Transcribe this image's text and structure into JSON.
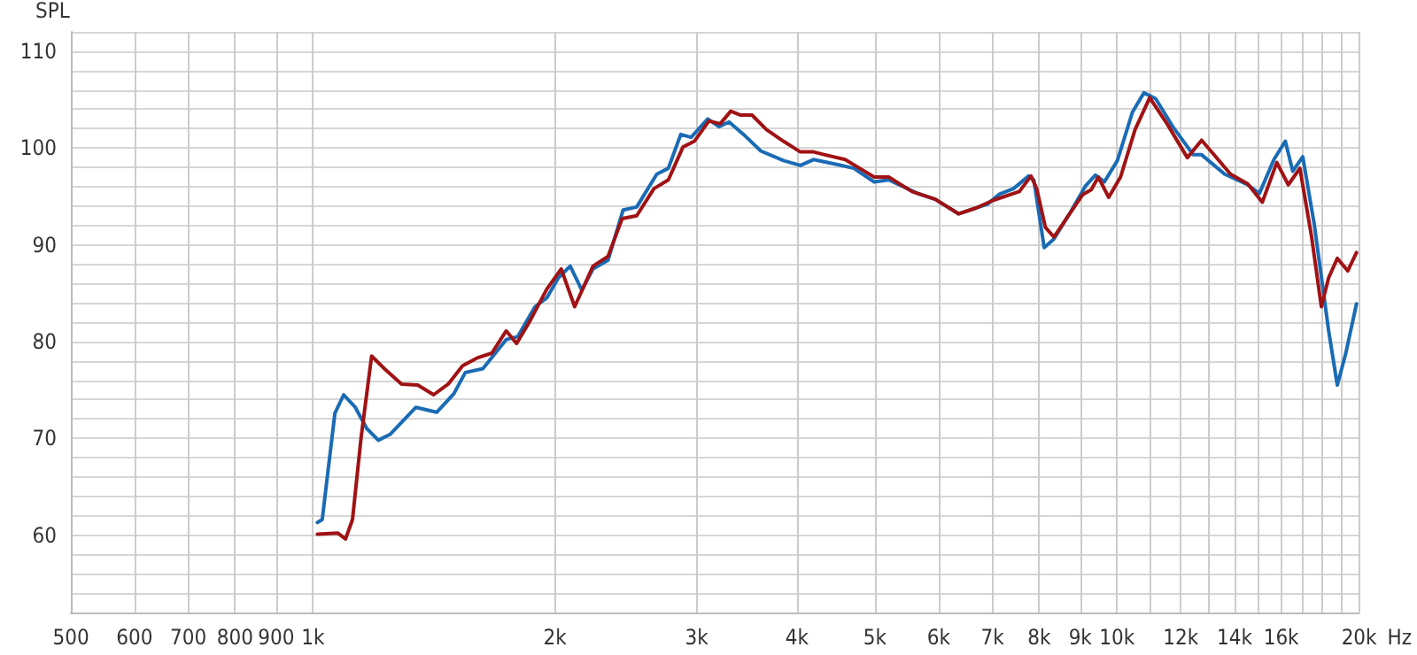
{
  "chart_data": {
    "type": "line",
    "xlabel": "Hz",
    "ylabel": "SPL",
    "log": "x",
    "grid": true,
    "marker": "none",
    "line_style": "solid",
    "xlim": [
      500,
      20000
    ],
    "ylim": [
      52,
      112
    ],
    "xticks": [
      500,
      600,
      700,
      800,
      900,
      {
        "value": 1000,
        "label": "1k"
      },
      {
        "value": 2000,
        "label": "2k"
      },
      {
        "value": 3000,
        "label": "3k"
      },
      {
        "value": 4000,
        "label": "4k"
      },
      {
        "value": 5000,
        "label": "5k"
      },
      {
        "value": 6000,
        "label": "6k"
      },
      {
        "value": 7000,
        "label": "7k"
      },
      {
        "value": 8000,
        "label": "8k"
      },
      {
        "value": 9000,
        "label": "9k"
      },
      {
        "value": 10000,
        "label": "10k"
      },
      {
        "value": 11000,
        "label": null
      },
      {
        "value": 12000,
        "label": "12k"
      },
      {
        "value": 13000,
        "label": null
      },
      {
        "value": 14000,
        "label": "14k"
      },
      {
        "value": 15000,
        "label": null
      },
      {
        "value": 16000,
        "label": "16k"
      },
      {
        "value": 17000,
        "label": null
      },
      {
        "value": 18000,
        "label": null
      },
      {
        "value": 19000,
        "label": null
      },
      {
        "value": 20000,
        "label": "20k"
      }
    ],
    "yticks": [
      {
        "value": 52,
        "label": null
      },
      {
        "value": 54,
        "label": null
      },
      {
        "value": 56,
        "label": null
      },
      {
        "value": 58,
        "label": null
      },
      60,
      {
        "value": 62,
        "label": null
      },
      {
        "value": 64,
        "label": null
      },
      {
        "value": 66,
        "label": null
      },
      {
        "value": 68,
        "label": null
      },
      70,
      {
        "value": 72,
        "label": null
      },
      {
        "value": 74,
        "label": null
      },
      {
        "value": 76,
        "label": null
      },
      {
        "value": 78,
        "label": null
      },
      80,
      {
        "value": 82,
        "label": null
      },
      {
        "value": 84,
        "label": null
      },
      {
        "value": 86,
        "label": null
      },
      {
        "value": 88,
        "label": null
      },
      90,
      {
        "value": 92,
        "label": null
      },
      {
        "value": 94,
        "label": null
      },
      {
        "value": 96,
        "label": null
      },
      {
        "value": 98,
        "label": null
      },
      100,
      {
        "value": 102,
        "label": null
      },
      {
        "value": 104,
        "label": null
      },
      {
        "value": 106,
        "label": null
      },
      {
        "value": 108,
        "label": null
      },
      110,
      {
        "value": 112,
        "label": null
      }
    ],
    "series": [
      {
        "color": "#1a6bb5",
        "x": [
          1013,
          1027,
          1065,
          1092,
          1129,
          1167,
          1206,
          1247,
          1343,
          1426,
          1497,
          1547,
          1627,
          1739,
          1797,
          1889,
          1953,
          2020,
          2089,
          2160,
          2230,
          2328,
          2431,
          2527,
          2677,
          2767,
          2867,
          2954,
          3097,
          3199,
          3292,
          3432,
          3605,
          3847,
          4038,
          4193,
          4482,
          4707,
          4988,
          5201,
          5652,
          5942,
          6351,
          6902,
          7130,
          7435,
          7762,
          7880,
          8117,
          8347,
          8770,
          9141,
          9398,
          9643,
          10010,
          10450,
          10800,
          11170,
          11730,
          12440,
          12740,
          13610,
          14540,
          15030,
          15670,
          16190,
          16540,
          17020,
          17590,
          18330,
          18790,
          19240,
          19850
        ],
        "values": [
          61.3,
          61.6,
          72.6,
          74.5,
          73.2,
          71.0,
          69.8,
          70.4,
          73.2,
          72.7,
          74.6,
          76.8,
          77.2,
          80.2,
          80.5,
          83.6,
          84.5,
          86.6,
          87.8,
          85.3,
          87.5,
          88.4,
          93.6,
          93.9,
          97.3,
          97.9,
          101.4,
          101.1,
          103.0,
          102.2,
          102.7,
          101.4,
          99.7,
          98.7,
          98.2,
          98.8,
          98.3,
          97.9,
          96.5,
          96.7,
          95.3,
          94.7,
          93.2,
          94.2,
          95.2,
          95.8,
          97.1,
          96.7,
          89.7,
          90.6,
          93.5,
          96.1,
          97.2,
          96.5,
          98.7,
          103.7,
          105.7,
          105.1,
          102.2,
          99.3,
          99.3,
          97.3,
          96.2,
          95.3,
          98.8,
          100.7,
          97.6,
          99.1,
          92.1,
          81.1,
          75.5,
          78.7,
          83.9
        ]
      },
      {
        "color": "#a01214",
        "x": [
          1013,
          1074,
          1098,
          1120,
          1148,
          1183,
          1227,
          1289,
          1350,
          1413,
          1473,
          1535,
          1600,
          1669,
          1739,
          1792,
          1858,
          1953,
          2036,
          2116,
          2230,
          2328,
          2424,
          2527,
          2655,
          2767,
          2885,
          2981,
          3108,
          3210,
          3308,
          3404,
          3516,
          3664,
          3847,
          4038,
          4193,
          4332,
          4591,
          4785,
          4988,
          5201,
          5559,
          5942,
          6351,
          6676,
          7016,
          7560,
          7816,
          7945,
          8145,
          8347,
          8699,
          9067,
          9290,
          9478,
          9762,
          10100,
          10530,
          10980,
          11540,
          12230,
          12740,
          13170,
          13840,
          14540,
          15160,
          15800,
          16330,
          16880,
          17450,
          17950,
          18330,
          18790,
          19360,
          19850
        ],
        "values": [
          60.1,
          60.2,
          59.6,
          61.6,
          70.1,
          78.5,
          77.2,
          75.6,
          75.5,
          74.5,
          75.6,
          77.5,
          78.3,
          78.8,
          81.1,
          79.8,
          82.0,
          85.4,
          87.5,
          83.6,
          87.8,
          88.8,
          92.7,
          93.0,
          95.8,
          96.7,
          100.1,
          100.7,
          102.8,
          102.5,
          103.8,
          103.4,
          103.4,
          101.9,
          100.7,
          99.6,
          99.6,
          99.3,
          98.8,
          97.9,
          97.0,
          97.0,
          95.5,
          94.7,
          93.2,
          93.8,
          94.6,
          95.5,
          97.1,
          95.8,
          91.8,
          90.8,
          93.0,
          95.2,
          95.7,
          97.0,
          94.9,
          97.0,
          101.9,
          105.2,
          102.5,
          99.0,
          100.8,
          99.4,
          97.3,
          96.3,
          94.4,
          98.5,
          96.2,
          97.9,
          90.9,
          83.6,
          86.6,
          88.6,
          87.3,
          89.2
        ]
      }
    ]
  }
}
